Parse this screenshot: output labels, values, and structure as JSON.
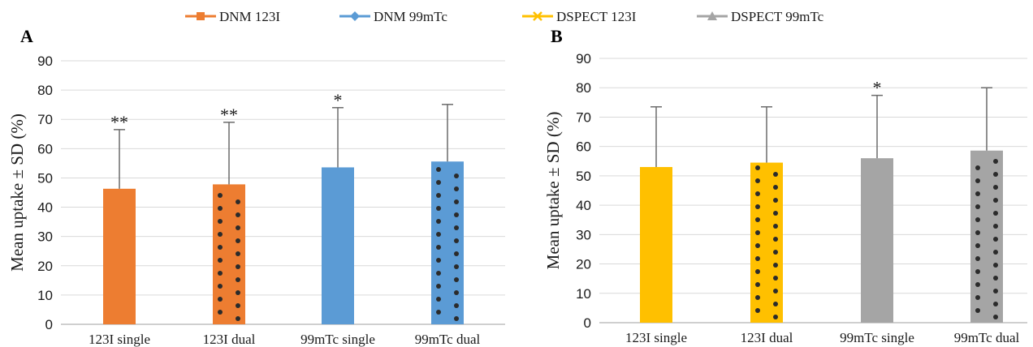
{
  "legend": [
    {
      "label": "DNM 123I",
      "color": "#ED7D31",
      "marker": "square"
    },
    {
      "label": "DNM 99mTc",
      "color": "#5B9BD5",
      "marker": "diamond"
    },
    {
      "label": "DSPECT 123I",
      "color": "#FFC000",
      "marker": "x"
    },
    {
      "label": "DSPECT 99mTc",
      "color": "#A5A5A5",
      "marker": "triangle"
    }
  ],
  "chart_data": [
    {
      "panel": "A",
      "type": "bar",
      "ylabel": "Mean uptake ± SD (%)",
      "ylim": [
        0,
        90
      ],
      "yticks": [
        0,
        10,
        20,
        30,
        40,
        50,
        60,
        70,
        80,
        90
      ],
      "grid": true,
      "categories": [
        "123I single",
        "123I dual",
        "99mTc single",
        "99mTc dual"
      ],
      "values": [
        46.3,
        47.8,
        53.6,
        55.6
      ],
      "error": [
        20.2,
        21.2,
        20.4,
        19.5
      ],
      "colors": [
        "#ED7D31",
        "#ED7D31",
        "#5B9BD5",
        "#5B9BD5"
      ],
      "dotted": [
        false,
        true,
        false,
        true
      ],
      "significance": [
        "**",
        "**",
        "*",
        ""
      ]
    },
    {
      "panel": "B",
      "type": "bar",
      "ylabel": "Mean uptake ± SD (%)",
      "ylim": [
        0,
        90
      ],
      "yticks": [
        0,
        10,
        20,
        30,
        40,
        50,
        60,
        70,
        80,
        90
      ],
      "grid": true,
      "categories": [
        "123I single",
        "123I dual",
        "99mTc single",
        "99mTc dual"
      ],
      "values": [
        53.0,
        54.5,
        56.0,
        58.6
      ],
      "error": [
        20.5,
        19.0,
        21.4,
        21.4
      ],
      "colors": [
        "#FFC000",
        "#FFC000",
        "#A5A5A5",
        "#A5A5A5"
      ],
      "dotted": [
        false,
        true,
        false,
        true
      ],
      "significance": [
        "",
        "",
        "*",
        ""
      ]
    }
  ]
}
